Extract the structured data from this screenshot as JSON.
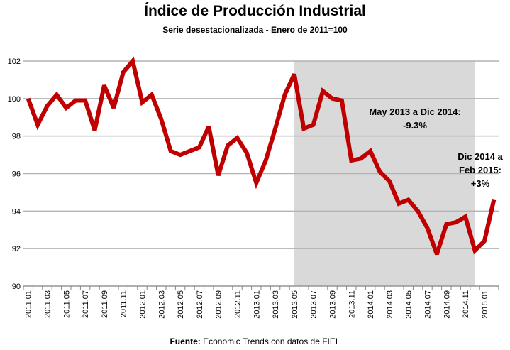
{
  "chart_data": {
    "type": "line",
    "title": "Índice de Producción Industrial",
    "subtitle": "Serie desestacionalizada - Enero de 2011=100",
    "source_label": "Fuente:",
    "source_text": " Economic Trends con datos de FIEL",
    "xlabel": "",
    "ylabel": "",
    "ylim": [
      90,
      102
    ],
    "yticks": [
      90,
      92,
      94,
      96,
      98,
      100,
      102
    ],
    "grid": true,
    "x": [
      "2011.01",
      "2011.02",
      "2011.03",
      "2011.04",
      "2011.05",
      "2011.06",
      "2011.07",
      "2011.08",
      "2011.09",
      "2011.10",
      "2011.11",
      "2011.12",
      "2012.01",
      "2012.02",
      "2012.03",
      "2012.04",
      "2012.05",
      "2012.06",
      "2012.07",
      "2012.08",
      "2012.09",
      "2012.10",
      "2012.11",
      "2012.12",
      "2013.01",
      "2013.02",
      "2013.03",
      "2013.04",
      "2013.05",
      "2013.06",
      "2013.07",
      "2013.08",
      "2013.09",
      "2013.10",
      "2013.11",
      "2013.12",
      "2014.01",
      "2014.02",
      "2014.03",
      "2014.04",
      "2014.05",
      "2014.06",
      "2014.07",
      "2014.08",
      "2014.09",
      "2014.10",
      "2014.11",
      "2014.12",
      "2015.01",
      "2015.02"
    ],
    "xtick_labels": [
      "2011.01",
      "2011.03",
      "2011.05",
      "2011.07",
      "2011.09",
      "2011.11",
      "2012.01",
      "2012.03",
      "2012.05",
      "2012.07",
      "2012.09",
      "2012.11",
      "2013.01",
      "2013.03",
      "2013.05",
      "2013.07",
      "2013.09",
      "2013.11",
      "2014.01",
      "2014.03",
      "2014.05",
      "2014.07",
      "2014.09",
      "2014.11",
      "2015.01"
    ],
    "series": [
      {
        "name": "Índice de Producción Industrial",
        "color": "#c00000",
        "values": [
          100.0,
          98.6,
          99.6,
          100.2,
          99.5,
          99.9,
          99.9,
          98.3,
          100.7,
          99.5,
          101.4,
          102.0,
          99.8,
          100.2,
          98.9,
          97.2,
          97.0,
          97.2,
          97.4,
          98.5,
          95.9,
          97.5,
          97.9,
          97.1,
          95.5,
          96.7,
          98.4,
          100.2,
          101.3,
          98.4,
          98.6,
          100.4,
          100.0,
          99.9,
          96.7,
          96.8,
          97.2,
          96.1,
          95.6,
          94.4,
          94.6,
          94.0,
          93.1,
          91.7,
          93.3,
          93.4,
          93.7,
          91.9,
          92.4,
          94.6
        ]
      }
    ],
    "shaded_range": {
      "from": "2013.05",
      "to": "2014.12",
      "color": "#d9d9d9"
    },
    "annotations": [
      {
        "lines": [
          "May 2013 a Dic 2014:",
          "-9.3%"
        ]
      },
      {
        "lines": [
          "Dic 2014 a",
          "Feb 2015:",
          "+3%"
        ]
      }
    ]
  }
}
